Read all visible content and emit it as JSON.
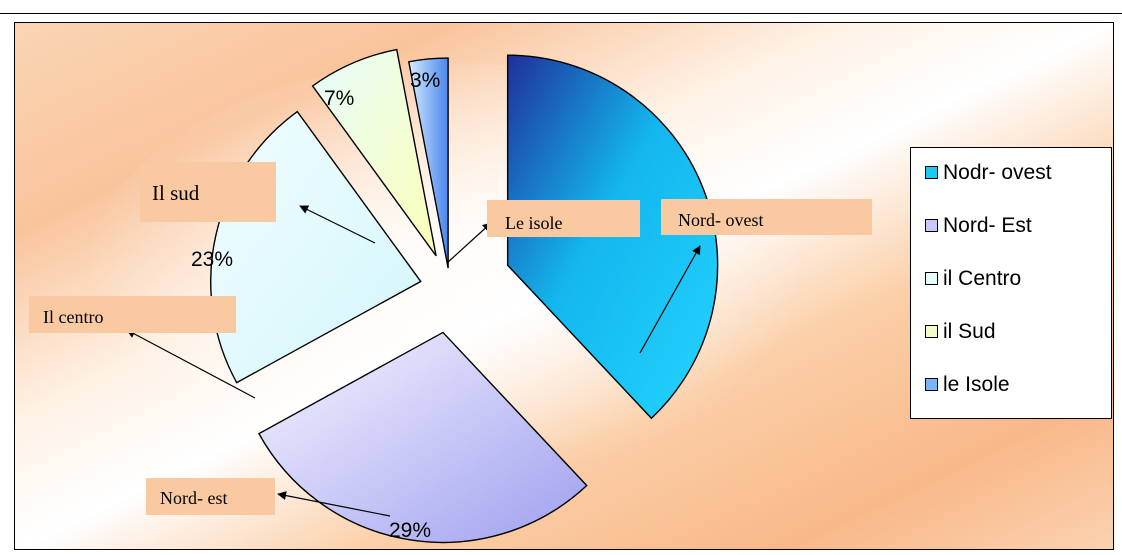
{
  "chart_data": {
    "type": "pie",
    "title": "",
    "exploded_3d": true,
    "slices": [
      {
        "label": "Nodr- ovest",
        "value": 38,
        "pct_label": "",
        "color": "#1ec8f0"
      },
      {
        "label": "Nord- Est",
        "value": 29,
        "pct_label": "29%",
        "color": "#c8c8f8"
      },
      {
        "label": "il Centro",
        "value": 23,
        "pct_label": "23%",
        "color": "#e6fbfd"
      },
      {
        "label": "il Sud",
        "value": 7,
        "pct_label": "7%",
        "color": "#f2fcc8"
      },
      {
        "label": "le Isole",
        "value": 3,
        "pct_label": "3%",
        "color": "#7ab4f8"
      }
    ],
    "legend": {
      "position": "right"
    },
    "annotations": [
      "Il sud",
      "Le isole",
      "Nord- ovest",
      "Il centro",
      "Nord- est"
    ]
  }
}
